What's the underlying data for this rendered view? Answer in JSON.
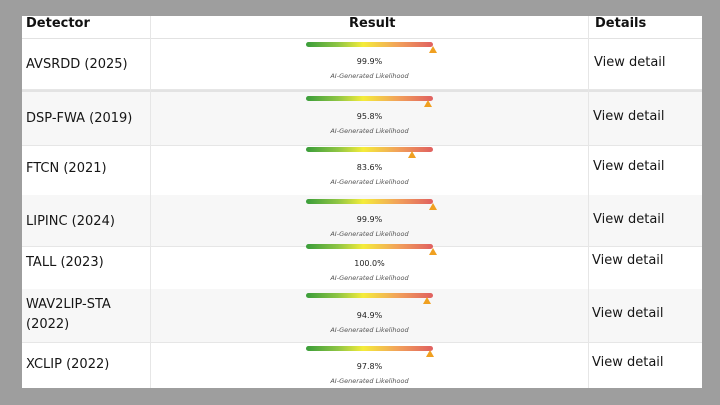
{
  "table": {
    "headers": {
      "detector": "Detector",
      "result": "Result",
      "details": "Details"
    },
    "rows": [
      {
        "detector": "AVSRDD (2025)",
        "percent": "99.9%",
        "value": 99.9,
        "caption": "AI-Generated Likelihood",
        "link": "View detail"
      },
      {
        "detector": "DSP-FWA (2019)",
        "percent": "95.8%",
        "value": 95.8,
        "caption": "AI-Generated Likelihood",
        "link": "View detail"
      },
      {
        "detector": "FTCN (2021)",
        "percent": "83.6%",
        "value": 83.6,
        "caption": "AI-Generated Likelihood",
        "link": "View detail"
      },
      {
        "detector": "LIPINC (2024)",
        "percent": "99.9%",
        "value": 99.9,
        "caption": "AI-Generated Likelihood",
        "link": "View detail"
      },
      {
        "detector": "TALL (2023)",
        "percent": "100.0%",
        "value": 100.0,
        "caption": "AI-Generated Likelihood",
        "link": "View detail"
      },
      {
        "detector": "WAV2LIP-STA (2022)",
        "percent": "94.9%",
        "value": 94.9,
        "caption": "AI-Generated Likelihood",
        "link": "View detail"
      },
      {
        "detector": "XCLIP (2022)",
        "percent": "97.8%",
        "value": 97.8,
        "caption": "AI-Generated Likelihood",
        "link": "View detail"
      }
    ]
  },
  "colors": {
    "bar_gradient": [
      "#3a9d3a",
      "#8ec544",
      "#f4ec3a",
      "#f2a25a",
      "#e06060"
    ],
    "marker": "#f0a020",
    "background": "#9e9e9e"
  },
  "icons": {
    "marker": "triangle-marker-icon"
  }
}
